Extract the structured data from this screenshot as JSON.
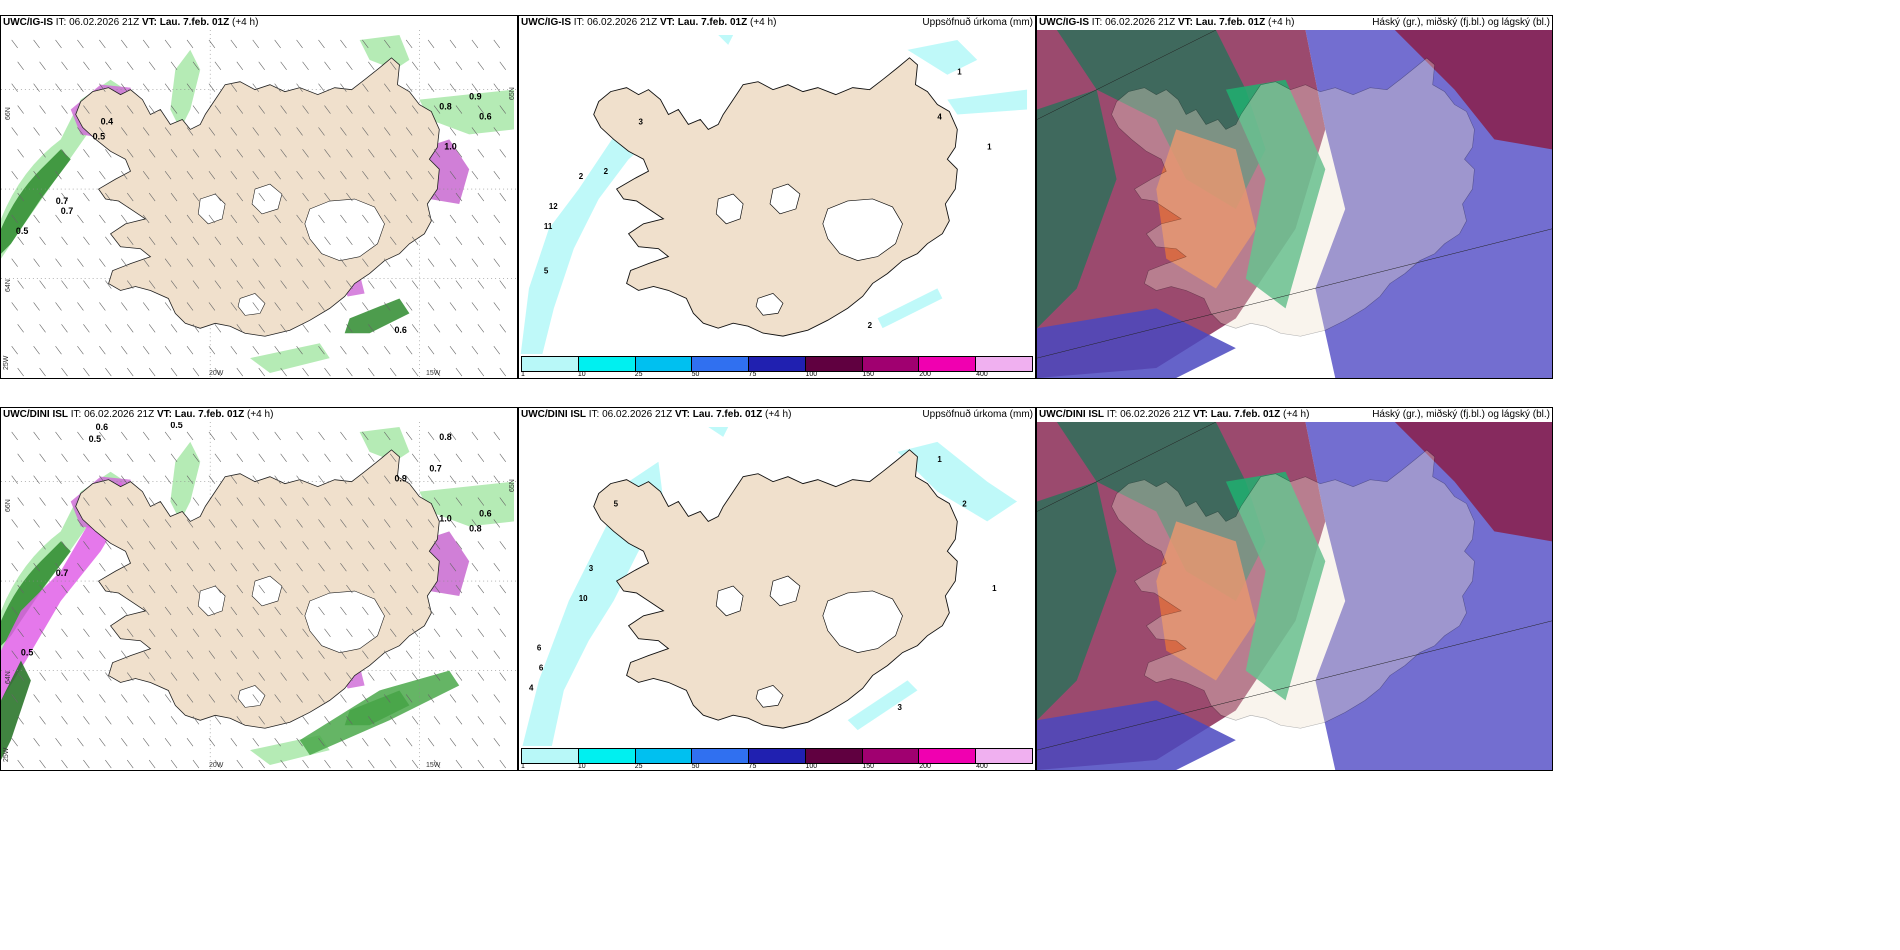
{
  "panels": [
    {
      "model": "UWC/IG-IS",
      "it_label": "IT:",
      "it": "06.02.2026 21Z",
      "vt_label": "VT: Lau. 7.feb. 01Z",
      "lead": "(+4 h)",
      "title": ""
    },
    {
      "model": "UWC/IG-IS",
      "it_label": "IT:",
      "it": "06.02.2026 21Z",
      "vt_label": "VT: Lau. 7.feb. 01Z",
      "lead": "(+4 h)",
      "title": "Uppsöfnuð úrkoma (mm)"
    },
    {
      "model": "UWC/IG-IS",
      "it_label": "IT:",
      "it": "06.02.2026 21Z",
      "vt_label": "VT: Lau. 7.feb. 01Z",
      "lead": "(+4 h)",
      "title": "Háský (gr.), miðský (fj.bl.) og lágský (bl.)"
    },
    {
      "model": "UWC/DINI ISL",
      "it_label": "IT:",
      "it": "06.02.2026 21Z",
      "vt_label": "VT: Lau. 7.feb. 01Z",
      "lead": "(+4 h)",
      "title": ""
    },
    {
      "model": "UWC/DINI ISL",
      "it_label": "IT:",
      "it": "06.02.2026 21Z",
      "vt_label": "VT: Lau. 7.feb. 01Z",
      "lead": "(+4 h)",
      "title": "Uppsöfnuð úrkoma (mm)"
    },
    {
      "model": "UWC/DINI ISL",
      "it_label": "IT:",
      "it": "06.02.2026 21Z",
      "vt_label": "VT: Lau. 7.feb. 01Z",
      "lead": "(+4 h)",
      "title": "Háský (gr.), miðský (fj.bl.) og lágský (bl.)"
    }
  ],
  "axes": {
    "lat_66": "66N",
    "lat_64": "64N",
    "lat_65": "65N",
    "lon_20": "20W",
    "lon_15": "15W",
    "lon_25": "25W"
  },
  "colorbar": {
    "ticks": [
      "1",
      "10",
      "25",
      "50",
      "75",
      "100",
      "150",
      "200",
      "400"
    ],
    "colors": [
      "#b8f8f8",
      "#00f0f0",
      "#00c0f0",
      "#3070f0",
      "#2020b0",
      "#600040",
      "#a00070",
      "#f000b0",
      "#f0b0f0"
    ]
  },
  "labels_top_left": [
    "0.4",
    "0.5",
    "0.7",
    "0.8",
    "0.9",
    "0.6",
    "1.0",
    "0.7",
    "0.5",
    "0.6"
  ],
  "labels_top_mid": [
    "3",
    "2",
    "2",
    "12",
    "11",
    "5",
    "1",
    "4",
    "2",
    "1"
  ],
  "labels_bot_left": [
    "0.6",
    "0.5",
    "0.5",
    "0.8",
    "0.7",
    "0.9",
    "1.0",
    "0.6",
    "0.8",
    "0.5",
    "0.7"
  ],
  "labels_bot_mid": [
    "5",
    "6",
    "3",
    "10",
    "6",
    "4",
    "1",
    "2",
    "3",
    "1"
  ],
  "colors": {
    "land": "#f0e0cc",
    "glacier": "#ffffff",
    "sea": "#ffffff"
  }
}
